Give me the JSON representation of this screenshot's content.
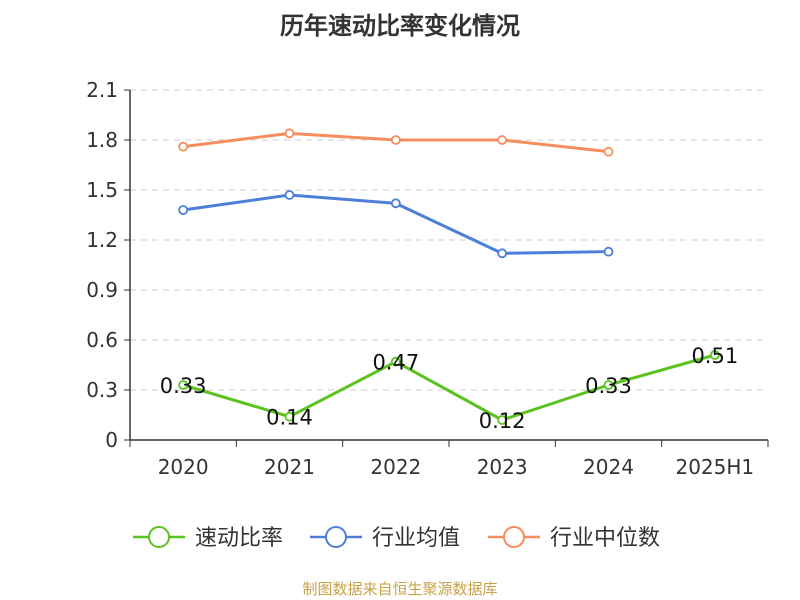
{
  "chart_data": {
    "type": "line",
    "title": "历年速动比率变化情况",
    "categories": [
      "2020",
      "2021",
      "2022",
      "2023",
      "2024",
      "2025H1"
    ],
    "ylim": [
      0,
      2.1
    ],
    "yticks": [
      "0",
      "0.3",
      "0.6",
      "0.9",
      "1.2",
      "1.5",
      "1.8",
      "2.1"
    ],
    "grid": true,
    "legend_position": "bottom",
    "series": [
      {
        "name": "速动比率",
        "color": "#5bc21f",
        "values": [
          0.33,
          0.14,
          0.47,
          0.12,
          0.33,
          0.51
        ],
        "labels": [
          "0.33",
          "0.14",
          "0.47",
          "0.12",
          "0.33",
          "0.51"
        ]
      },
      {
        "name": "行业均值",
        "color": "#4d7fd8",
        "values": [
          1.38,
          1.47,
          1.42,
          1.12,
          1.13,
          null
        ]
      },
      {
        "name": "行业中位数",
        "color": "#f58d5c",
        "values": [
          1.76,
          1.84,
          1.8,
          1.8,
          1.73,
          null
        ]
      }
    ]
  },
  "source": "制图数据来自恒生聚源数据库"
}
